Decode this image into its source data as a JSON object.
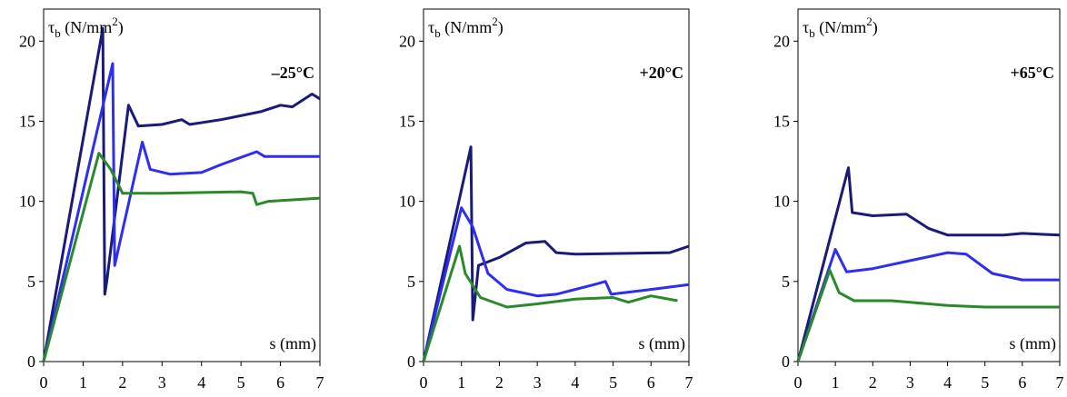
{
  "chart_data": [
    {
      "type": "line",
      "annotation": "–25°C",
      "ylabel": [
        "τ",
        "b",
        " (N/mm",
        "2",
        ")"
      ],
      "xlabel": "s (mm)",
      "xlim": [
        0,
        7
      ],
      "ylim": [
        0,
        22
      ],
      "xticks": [
        0,
        1,
        2,
        3,
        4,
        5,
        6,
        7
      ],
      "yticks": [
        0,
        5,
        10,
        15,
        20
      ],
      "series": [
        {
          "color": "#1a1a7a",
          "x": [
            0,
            1.5,
            1.55,
            1.6,
            2.15,
            2.4,
            3,
            3.5,
            3.7,
            4.5,
            5.5,
            6,
            6.3,
            6.8,
            7
          ],
          "values": [
            0,
            20.8,
            4.2,
            5,
            16,
            14.7,
            14.8,
            15.1,
            14.8,
            15.1,
            15.6,
            16,
            15.9,
            16.7,
            16.4
          ]
        },
        {
          "color": "#2e2ef0",
          "x": [
            0,
            1.75,
            1.8,
            2.5,
            2.7,
            3.2,
            4,
            4.5,
            5.4,
            5.6,
            7
          ],
          "values": [
            0,
            18.6,
            6,
            13.7,
            12,
            11.7,
            11.8,
            12.3,
            13.1,
            12.8,
            12.8
          ]
        },
        {
          "color": "#2a8a2a",
          "x": [
            0,
            1.4,
            1.7,
            2,
            3,
            5,
            5.3,
            5.4,
            5.7,
            7
          ],
          "values": [
            0,
            13,
            12,
            10.5,
            10.5,
            10.6,
            10.5,
            9.8,
            10,
            10.2
          ]
        }
      ]
    },
    {
      "type": "line",
      "annotation": "+20°C",
      "ylabel": [
        "τ",
        "b",
        " (N/mm",
        "2",
        ")"
      ],
      "xlabel": "s (mm)",
      "xlim": [
        0,
        7
      ],
      "ylim": [
        0,
        22
      ],
      "xticks": [
        0,
        1,
        2,
        3,
        4,
        5,
        6,
        7
      ],
      "yticks": [
        0,
        5,
        10,
        15,
        20
      ],
      "series": [
        {
          "color": "#1a1a7a",
          "x": [
            0,
            1.25,
            1.3,
            1.45,
            2,
            2.7,
            3.2,
            3.5,
            4,
            6.5,
            7
          ],
          "values": [
            0,
            13.4,
            2.6,
            6,
            6.5,
            7.4,
            7.5,
            6.8,
            6.7,
            6.8,
            7.2
          ]
        },
        {
          "color": "#2e2ef0",
          "x": [
            0,
            1,
            1.3,
            1.7,
            2.2,
            3,
            3.5,
            4.5,
            4.8,
            4.95,
            6,
            7
          ],
          "values": [
            0,
            9.6,
            8.4,
            5.5,
            4.5,
            4.1,
            4.2,
            4.8,
            5,
            4.2,
            4.5,
            4.8
          ]
        },
        {
          "color": "#2a8a2a",
          "x": [
            0,
            0.95,
            1.1,
            1.5,
            2.2,
            3,
            4,
            5,
            5.4,
            6,
            6.7
          ],
          "values": [
            0,
            7.2,
            5.5,
            4,
            3.4,
            3.6,
            3.9,
            4,
            3.7,
            4.1,
            3.8
          ]
        }
      ]
    },
    {
      "type": "line",
      "annotation": "+65°C",
      "ylabel": [
        "τ",
        "b",
        " (N/mm",
        "2",
        ")"
      ],
      "xlabel": "s (mm)",
      "xlim": [
        0,
        7
      ],
      "ylim": [
        0,
        22
      ],
      "xticks": [
        0,
        1,
        2,
        3,
        4,
        5,
        6,
        7
      ],
      "yticks": [
        0,
        5,
        10,
        15,
        20
      ],
      "series": [
        {
          "color": "#1a1a7a",
          "x": [
            0,
            1.35,
            1.45,
            2,
            2.9,
            3.5,
            4,
            5.5,
            6,
            7
          ],
          "values": [
            0,
            12.1,
            9.3,
            9.1,
            9.2,
            8.3,
            7.9,
            7.9,
            8,
            7.9
          ]
        },
        {
          "color": "#2e2ef0",
          "x": [
            0,
            1,
            1.3,
            2,
            3,
            4,
            4.5,
            5.2,
            6,
            7
          ],
          "values": [
            0,
            7,
            5.6,
            5.8,
            6.3,
            6.8,
            6.7,
            5.5,
            5.1,
            5.1
          ]
        },
        {
          "color": "#2a8a2a",
          "x": [
            0,
            0.85,
            1.1,
            1.5,
            2.5,
            3,
            4,
            5,
            7
          ],
          "values": [
            0,
            5.7,
            4.3,
            3.8,
            3.8,
            3.7,
            3.5,
            3.4,
            3.4
          ]
        }
      ]
    }
  ]
}
